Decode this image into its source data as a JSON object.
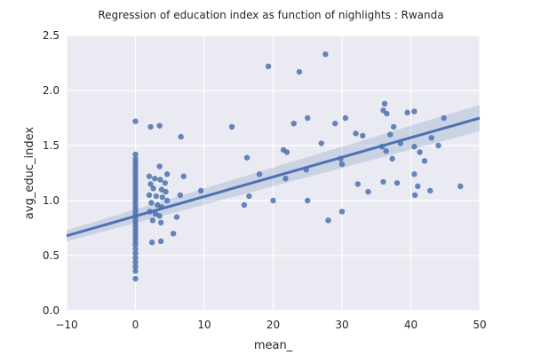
{
  "chart_data": {
    "type": "scatter",
    "title": "Regression of education index as function of nighlights : Rwanda",
    "xlabel": "mean_",
    "ylabel": "avg_educ_index",
    "xlim": [
      -10,
      50
    ],
    "ylim": [
      0.0,
      2.5
    ],
    "xticks": [
      -10,
      0,
      10,
      20,
      30,
      40,
      50
    ],
    "yticks": [
      0.0,
      0.5,
      1.0,
      1.5,
      2.0,
      2.5
    ],
    "xtick_labels": [
      "−10",
      "0",
      "10",
      "20",
      "30",
      "40",
      "50"
    ],
    "ytick_labels": [
      "0.0",
      "0.5",
      "1.0",
      "1.5",
      "2.0",
      "2.5"
    ],
    "grid": true,
    "legend": "none",
    "colors": {
      "background": "#eaeaf2",
      "grid": "#ffffff",
      "point": "#4c72b0",
      "line": "#4c72b0",
      "ci_band": "#4c72b0"
    },
    "regression": {
      "x": [
        -10,
        50
      ],
      "y": [
        0.68,
        1.75
      ],
      "ci_lower": [
        0.63,
        1.63
      ],
      "ci_upper": [
        0.73,
        1.87
      ]
    },
    "points": [
      {
        "x": 0,
        "y": 1.72
      },
      {
        "x": 0,
        "y": 1.42
      },
      {
        "x": 0,
        "y": 1.38
      },
      {
        "x": 0,
        "y": 1.35
      },
      {
        "x": 0,
        "y": 1.32
      },
      {
        "x": 0,
        "y": 1.29
      },
      {
        "x": 0,
        "y": 1.26
      },
      {
        "x": 0,
        "y": 1.23
      },
      {
        "x": 0,
        "y": 1.2
      },
      {
        "x": 0,
        "y": 1.17
      },
      {
        "x": 0,
        "y": 1.14
      },
      {
        "x": 0,
        "y": 1.11
      },
      {
        "x": 0,
        "y": 1.08
      },
      {
        "x": 0,
        "y": 1.05
      },
      {
        "x": 0,
        "y": 1.02
      },
      {
        "x": 0,
        "y": 0.99
      },
      {
        "x": 0,
        "y": 0.96
      },
      {
        "x": 0,
        "y": 0.93
      },
      {
        "x": 0,
        "y": 0.9
      },
      {
        "x": 0,
        "y": 0.87
      },
      {
        "x": 0,
        "y": 0.84
      },
      {
        "x": 0,
        "y": 0.81
      },
      {
        "x": 0,
        "y": 0.78
      },
      {
        "x": 0,
        "y": 0.75
      },
      {
        "x": 0,
        "y": 0.72
      },
      {
        "x": 0,
        "y": 0.69
      },
      {
        "x": 0,
        "y": 0.66
      },
      {
        "x": 0,
        "y": 0.63
      },
      {
        "x": 0,
        "y": 0.6
      },
      {
        "x": 0,
        "y": 0.56
      },
      {
        "x": 0,
        "y": 0.52
      },
      {
        "x": 0,
        "y": 0.48
      },
      {
        "x": 0,
        "y": 0.44
      },
      {
        "x": 0,
        "y": 0.4
      },
      {
        "x": 0,
        "y": 0.36
      },
      {
        "x": 0,
        "y": 0.29
      },
      {
        "x": 2.2,
        "y": 1.67
      },
      {
        "x": 3.5,
        "y": 1.68
      },
      {
        "x": 3.5,
        "y": 1.31
      },
      {
        "x": 2.0,
        "y": 1.22
      },
      {
        "x": 2.8,
        "y": 1.2
      },
      {
        "x": 3.6,
        "y": 1.19
      },
      {
        "x": 4.3,
        "y": 1.16
      },
      {
        "x": 4.6,
        "y": 1.24
      },
      {
        "x": 2.2,
        "y": 1.15
      },
      {
        "x": 2.6,
        "y": 1.11
      },
      {
        "x": 3.8,
        "y": 1.1
      },
      {
        "x": 4.4,
        "y": 1.08
      },
      {
        "x": 2.0,
        "y": 1.05
      },
      {
        "x": 3.0,
        "y": 1.04
      },
      {
        "x": 3.9,
        "y": 1.03
      },
      {
        "x": 4.6,
        "y": 1.0
      },
      {
        "x": 2.3,
        "y": 0.98
      },
      {
        "x": 3.2,
        "y": 0.96
      },
      {
        "x": 3.8,
        "y": 0.94
      },
      {
        "x": 2.1,
        "y": 0.9
      },
      {
        "x": 2.9,
        "y": 0.88
      },
      {
        "x": 3.5,
        "y": 0.86
      },
      {
        "x": 2.5,
        "y": 0.82
      },
      {
        "x": 3.7,
        "y": 0.8
      },
      {
        "x": 2.4,
        "y": 0.62
      },
      {
        "x": 3.7,
        "y": 0.63
      },
      {
        "x": 5.5,
        "y": 0.7
      },
      {
        "x": 6.0,
        "y": 0.85
      },
      {
        "x": 6.5,
        "y": 1.05
      },
      {
        "x": 7.0,
        "y": 1.22
      },
      {
        "x": 6.6,
        "y": 1.58
      },
      {
        "x": 9.5,
        "y": 1.09
      },
      {
        "x": 14.0,
        "y": 1.67
      },
      {
        "x": 15.8,
        "y": 0.96
      },
      {
        "x": 16.2,
        "y": 1.39
      },
      {
        "x": 16.5,
        "y": 1.04
      },
      {
        "x": 18.0,
        "y": 1.24
      },
      {
        "x": 19.3,
        "y": 2.22
      },
      {
        "x": 20.0,
        "y": 1.0
      },
      {
        "x": 21.5,
        "y": 1.46
      },
      {
        "x": 22.0,
        "y": 1.44
      },
      {
        "x": 21.8,
        "y": 1.2
      },
      {
        "x": 23.0,
        "y": 1.7
      },
      {
        "x": 23.8,
        "y": 2.17
      },
      {
        "x": 24.8,
        "y": 1.28
      },
      {
        "x": 25.0,
        "y": 1.75
      },
      {
        "x": 25.0,
        "y": 1.0
      },
      {
        "x": 27.0,
        "y": 1.52
      },
      {
        "x": 27.6,
        "y": 2.33
      },
      {
        "x": 28.0,
        "y": 0.82
      },
      {
        "x": 29.0,
        "y": 1.7
      },
      {
        "x": 29.8,
        "y": 1.38
      },
      {
        "x": 30.0,
        "y": 1.33
      },
      {
        "x": 30.5,
        "y": 1.75
      },
      {
        "x": 30.0,
        "y": 0.9
      },
      {
        "x": 32.0,
        "y": 1.61
      },
      {
        "x": 32.3,
        "y": 1.15
      },
      {
        "x": 33.0,
        "y": 1.59
      },
      {
        "x": 33.8,
        "y": 1.08
      },
      {
        "x": 35.8,
        "y": 1.49
      },
      {
        "x": 36.0,
        "y": 1.82
      },
      {
        "x": 36.2,
        "y": 1.88
      },
      {
        "x": 36.5,
        "y": 1.79
      },
      {
        "x": 36.4,
        "y": 1.45
      },
      {
        "x": 36.0,
        "y": 1.17
      },
      {
        "x": 37.0,
        "y": 1.6
      },
      {
        "x": 37.5,
        "y": 1.67
      },
      {
        "x": 37.3,
        "y": 1.38
      },
      {
        "x": 38.0,
        "y": 1.16
      },
      {
        "x": 38.5,
        "y": 1.52
      },
      {
        "x": 39.5,
        "y": 1.8
      },
      {
        "x": 40.5,
        "y": 1.81
      },
      {
        "x": 40.5,
        "y": 1.49
      },
      {
        "x": 40.5,
        "y": 1.24
      },
      {
        "x": 40.6,
        "y": 1.05
      },
      {
        "x": 41.0,
        "y": 1.13
      },
      {
        "x": 41.3,
        "y": 1.44
      },
      {
        "x": 42.0,
        "y": 1.36
      },
      {
        "x": 42.8,
        "y": 1.09
      },
      {
        "x": 43.0,
        "y": 1.57
      },
      {
        "x": 44.0,
        "y": 1.5
      },
      {
        "x": 44.8,
        "y": 1.75
      },
      {
        "x": 47.2,
        "y": 1.13
      }
    ]
  }
}
